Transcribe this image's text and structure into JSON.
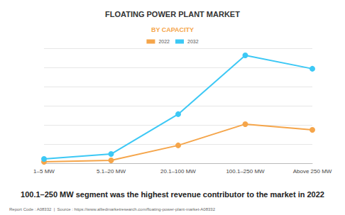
{
  "chart_data": {
    "type": "line",
    "title": "FLOATING POWER PLANT MARKET",
    "subtitle": "BY CAPACITY",
    "caption": "100.1–250 MW segment was the highest revenue contributor to the market in 2022",
    "source": "Report Code : A08332  |  Source : https://www.alliedmarketresearch.com/floating-power-plant-market-A08332",
    "categories": [
      "1–5 MW",
      "5.1–20 MW",
      "20.1–100 MW",
      "100.1–250 MW",
      "Above 250 MW"
    ],
    "series": [
      {
        "name": "2022",
        "color": "#f5a54a",
        "marker": "circle",
        "values": [
          0.07,
          0.15,
          0.93,
          2.04,
          1.74
        ]
      },
      {
        "name": "2032",
        "color": "#3cc8f5",
        "marker": "circle",
        "values": [
          0.22,
          0.48,
          2.56,
          5.63,
          4.93
        ]
      }
    ],
    "ylim": [
      0,
      6
    ],
    "yticks": [
      0,
      1,
      2,
      3,
      4,
      5,
      6
    ],
    "grid": true,
    "legend": "top",
    "tick_labels": "x"
  }
}
